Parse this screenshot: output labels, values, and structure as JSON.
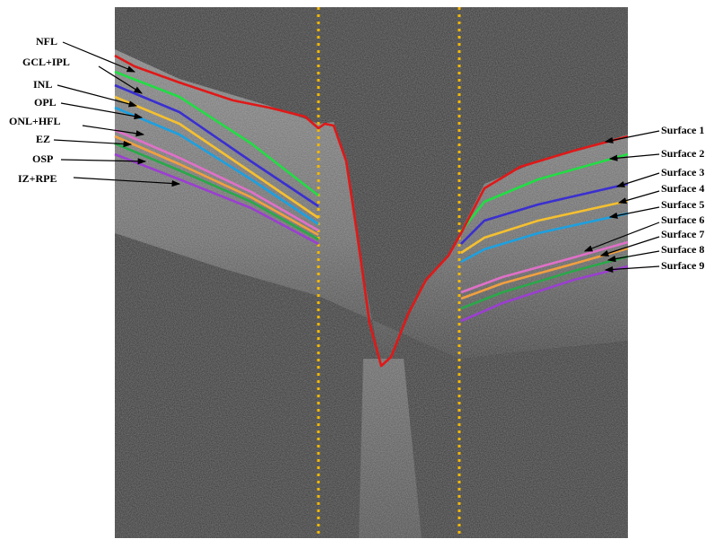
{
  "left_labels": [
    "NFL",
    "GCL+IPL",
    "INL",
    "OPL",
    "ONL+HFL",
    "EZ",
    "OSP",
    "IZ+RPE"
  ],
  "right_labels": [
    "Surface 1",
    "Surface 2",
    "Surface 3",
    "Surface 4",
    "Surface 5",
    "Surface 6",
    "Surface 7",
    "Surface 8",
    "Surface 9"
  ]
}
